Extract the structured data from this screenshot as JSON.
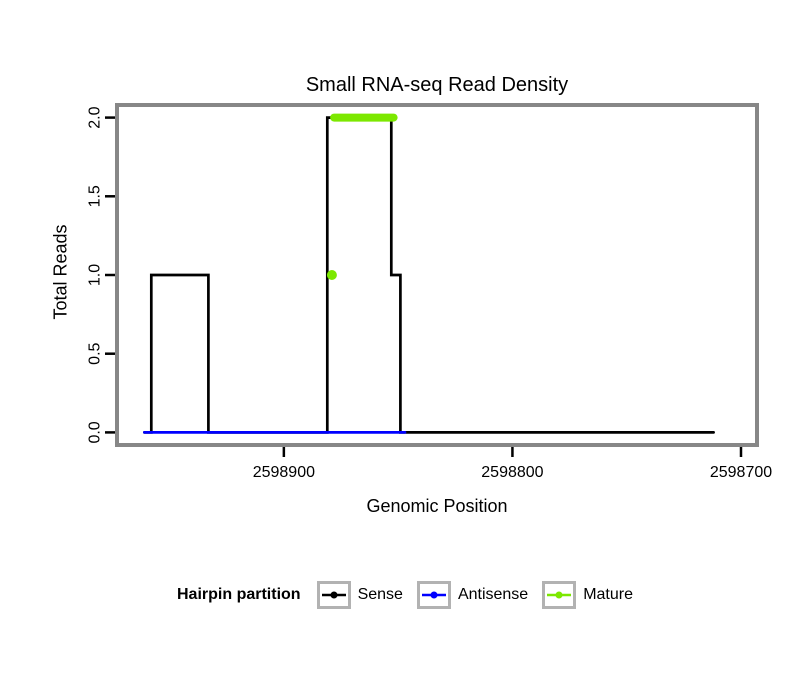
{
  "chart_data": {
    "type": "line",
    "title": "Small RNA-seq Read Density",
    "xlabel": "Genomic Position",
    "ylabel": "Total Reads",
    "x_axis_reversed": true,
    "xlim": [
      2598973,
      2598693
    ],
    "ylim": [
      0,
      2
    ],
    "grid": false,
    "x_ticks": [
      {
        "value": 2598900,
        "label": "2598900"
      },
      {
        "value": 2598800,
        "label": "2598800"
      },
      {
        "value": 2598700,
        "label": "2598700"
      }
    ],
    "y_ticks": [
      {
        "value": 0,
        "label": "0.0"
      },
      {
        "value": 0.5,
        "label": "0.5"
      },
      {
        "value": 1,
        "label": "1.0"
      },
      {
        "value": 1.5,
        "label": "1.5"
      },
      {
        "value": 2,
        "label": "2.0"
      }
    ],
    "series": [
      {
        "name": "Sense",
        "color": "#000000",
        "line_width": 2.7,
        "points": [
          [
            2598961,
            0
          ],
          [
            2598958,
            0
          ],
          [
            2598958,
            1
          ],
          [
            2598933,
            1
          ],
          [
            2598933,
            0
          ],
          [
            2598881,
            0
          ],
          [
            2598881,
            2
          ],
          [
            2598853,
            2
          ],
          [
            2598853,
            1
          ],
          [
            2598849,
            1
          ],
          [
            2598849,
            0
          ],
          [
            2598712,
            0
          ]
        ]
      },
      {
        "name": "Antisense",
        "color": "#0000FF",
        "line_width": 2.7,
        "points": [
          [
            2598961,
            0
          ],
          [
            2598847,
            0
          ]
        ]
      },
      {
        "name": "Mature",
        "color": "#7CE800",
        "line_width": 8,
        "points": [
          [
            2598878,
            2
          ],
          [
            2598852,
            2
          ]
        ]
      }
    ],
    "markers": [
      {
        "series": "Mature",
        "color": "#7CE800",
        "x": 2598879,
        "y": 1,
        "radius": 5
      }
    ],
    "legend": {
      "title": "Hairpin partition",
      "position": "bottom",
      "items": [
        {
          "label": "Sense",
          "color": "#000000"
        },
        {
          "label": "Antisense",
          "color": "#0000FF"
        },
        {
          "label": "Mature",
          "color": "#7CE800"
        }
      ]
    },
    "colors": {
      "panel_border": "#878787",
      "axis": "#000000",
      "background": "#FFFFFF"
    }
  }
}
